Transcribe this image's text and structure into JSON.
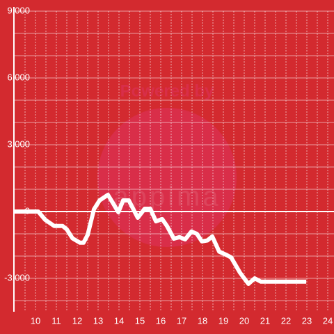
{
  "chart_data": {
    "type": "line",
    "watermark": [
      "Powered by",
      "appima"
    ],
    "x": [
      9.0,
      10.13,
      10.47,
      10.9,
      11.3,
      11.5,
      11.77,
      12.13,
      12.3,
      12.5,
      12.8,
      13.07,
      13.47,
      13.73,
      13.97,
      14.2,
      14.47,
      14.9,
      15.23,
      15.5,
      15.77,
      16.07,
      16.3,
      16.63,
      16.9,
      17.17,
      17.47,
      17.73,
      17.97,
      18.23,
      18.47,
      18.8,
      19.13,
      19.37,
      19.8,
      20.2,
      20.5,
      20.8,
      22.97
    ],
    "values": [
      0,
      0,
      -375,
      -650,
      -650,
      -800,
      -1200,
      -1400,
      -1400,
      -1050,
      100,
      500,
      750,
      350,
      -30,
      500,
      500,
      -280,
      125,
      125,
      -440,
      -340,
      -650,
      -1220,
      -1150,
      -1250,
      -900,
      -1000,
      -1340,
      -1300,
      -1120,
      -1800,
      -1940,
      -2060,
      -2750,
      -3250,
      -3000,
      -3150,
      -3150
    ],
    "color": "#ffffff",
    "xlim": [
      9,
      24.3
    ],
    "xticks": [
      10,
      11,
      12,
      13,
      14,
      15,
      16,
      17,
      18,
      19,
      20,
      21,
      22,
      23,
      24
    ],
    "ylim": [
      -4500,
      9000
    ],
    "yticks": [
      {
        "value": -3000,
        "label": "-3,000"
      },
      0,
      {
        "value": 3000,
        "label": "3,000"
      },
      {
        "value": 6000,
        "label": "6,000"
      },
      {
        "value": 9000,
        "label": "9,000"
      }
    ],
    "grid": true
  }
}
